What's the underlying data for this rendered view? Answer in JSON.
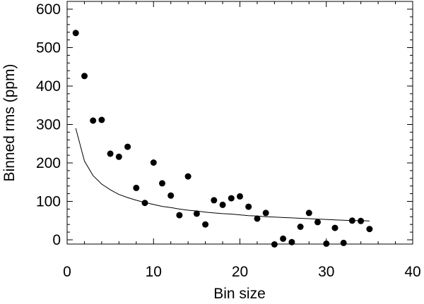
{
  "chart_data": {
    "type": "scatter",
    "xlabel": "Bin size",
    "ylabel": "Binned rms (ppm)",
    "xlim": [
      0,
      40
    ],
    "ylim": [
      0,
      600
    ],
    "xticks": [
      "0",
      "10",
      "20",
      "30",
      "40"
    ],
    "yticks": [
      "0",
      "100",
      "200",
      "300",
      "400",
      "500",
      "600"
    ],
    "grid": false,
    "legend": "none",
    "series": [
      {
        "kind": "points",
        "x": [
          1,
          2,
          3,
          4,
          5,
          6,
          7,
          8,
          9,
          10,
          11,
          12,
          13,
          14,
          15,
          16,
          17,
          18,
          19,
          20,
          21,
          22,
          23,
          24,
          25,
          26,
          27,
          28,
          29,
          30,
          31,
          32,
          33,
          34,
          35
        ],
        "y": [
          538,
          426,
          310,
          312,
          224,
          216,
          242,
          135,
          96,
          201,
          147,
          115,
          64,
          165,
          68,
          40,
          103,
          91,
          108,
          113,
          86,
          55,
          70,
          -12,
          3,
          -6,
          34,
          70,
          46,
          -10,
          31,
          -8,
          50,
          49,
          28
        ]
      },
      {
        "kind": "line",
        "x": [
          1,
          2,
          3,
          4,
          5,
          6,
          7,
          8,
          9,
          10,
          11,
          12,
          13,
          14,
          15,
          16,
          17,
          18,
          19,
          20,
          21,
          22,
          23,
          24,
          25,
          26,
          27,
          28,
          29,
          30,
          31,
          32,
          33,
          34,
          35
        ],
        "y": [
          290,
          205,
          167,
          145,
          130,
          118,
          110,
          103,
          97,
          92,
          87,
          84,
          80,
          77,
          75,
          72,
          70,
          68,
          67,
          65,
          63,
          62,
          60,
          59,
          58,
          57,
          56,
          55,
          54,
          53,
          52,
          51,
          50,
          50,
          49
        ]
      }
    ]
  },
  "colors": {
    "axis": "#000000",
    "points": "#000000",
    "line": "#000000",
    "background": "#ffffff"
  }
}
